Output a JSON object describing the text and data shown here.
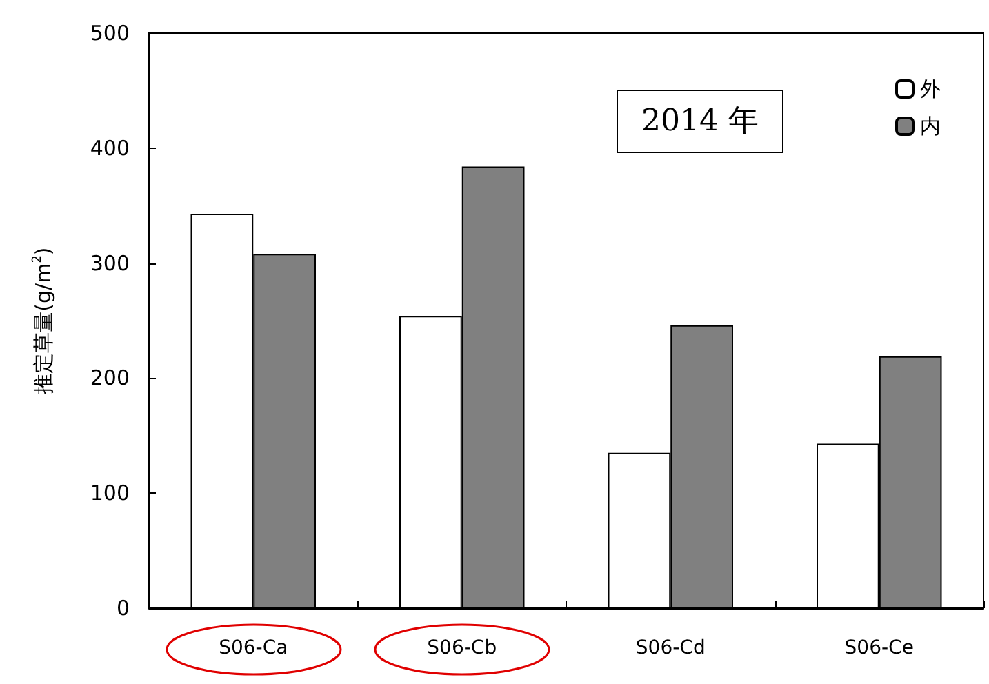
{
  "chart_data": {
    "type": "bar",
    "ylabel": "推定草量(g/m$^{2}$)",
    "annotations": [
      "2014 年"
    ],
    "categories": [
      "S06-Ca",
      "S06-Cb",
      "S06-Cd",
      "S06-Ce"
    ],
    "series": [
      {
        "name": "外",
        "color": "#ffffff",
        "values": [
          343,
          254,
          135,
          143
        ]
      },
      {
        "name": "内",
        "color": "#808080",
        "values": [
          308,
          384,
          246,
          219
        ]
      }
    ],
    "ylim": [
      0,
      500
    ],
    "yticks": [
      0,
      100,
      200,
      300,
      400,
      500
    ],
    "grid": false,
    "legend": "top right"
  }
}
